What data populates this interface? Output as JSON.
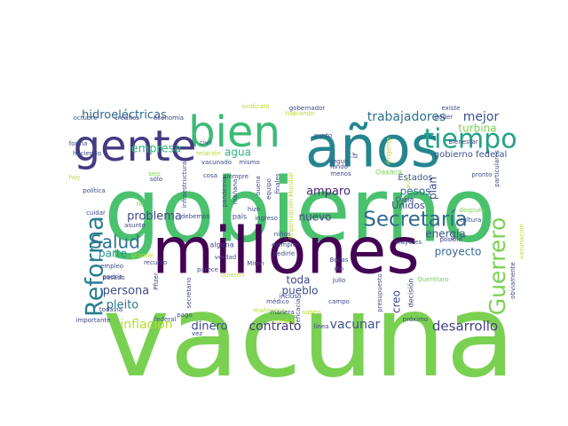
{
  "chart_data": {
    "type": "wordcloud",
    "title": "",
    "palette": "viridis",
    "background": "#ffffff",
    "words": [
      {
        "text": "vacuna",
        "weight": 100,
        "color": "#7ad151",
        "rotated": false
      },
      {
        "text": "gobierno",
        "weight": 98,
        "color": "#4ac16d",
        "rotated": false
      },
      {
        "text": "millones",
        "weight": 78,
        "color": "#440154",
        "rotated": false
      },
      {
        "text": "años",
        "weight": 56,
        "color": "#25858e",
        "rotated": false
      },
      {
        "text": "bien",
        "weight": 44,
        "color": "#3bbb75",
        "rotated": false
      },
      {
        "text": "gente",
        "weight": 40,
        "color": "#443a83",
        "rotated": false
      },
      {
        "text": "tiempo",
        "weight": 26,
        "color": "#20a386",
        "rotated": false
      },
      {
        "text": "Reforma",
        "weight": 26,
        "color": "#287d8e",
        "rotated": true
      },
      {
        "text": "Guerrero",
        "weight": 22,
        "color": "#7ad151",
        "rotated": true
      },
      {
        "text": "Secretaría",
        "weight": 21,
        "color": "#306a8e",
        "rotated": false
      },
      {
        "text": "Salud",
        "weight": 18,
        "color": "#2c728e",
        "rotated": false
      },
      {
        "text": "vacunar",
        "weight": 12,
        "color": "#3b528b",
        "rotated": false
      },
      {
        "text": "trabajadores",
        "weight": 12,
        "color": "#2c728e",
        "rotated": false
      },
      {
        "text": "mejor",
        "weight": 11,
        "color": "#3b528b",
        "rotated": false
      },
      {
        "text": "desarrollo",
        "weight": 12,
        "color": "#433e85",
        "rotated": false
      },
      {
        "text": "inflación",
        "weight": 12,
        "color": "#b5de2b",
        "rotated": false
      },
      {
        "text": "contrato",
        "weight": 11,
        "color": "#453581",
        "rotated": false
      },
      {
        "text": "hidroeléctricas",
        "weight": 11,
        "color": "#31688e",
        "rotated": false
      },
      {
        "text": "empresa",
        "weight": 11,
        "color": "#35b779",
        "rotated": false
      },
      {
        "text": "problema",
        "weight": 10,
        "color": "#3e4989",
        "rotated": false
      },
      {
        "text": "persona",
        "weight": 10,
        "color": "#3e4989",
        "rotated": false
      },
      {
        "text": "pleito",
        "weight": 10,
        "color": "#2a788e",
        "rotated": false
      },
      {
        "text": "parte",
        "weight": 10,
        "color": "#21918c",
        "rotated": false
      },
      {
        "text": "dinero",
        "weight": 10,
        "color": "#3e4989",
        "rotated": false
      },
      {
        "text": "amparo",
        "weight": 10,
        "color": "#482173",
        "rotated": false
      },
      {
        "text": "pesos",
        "weight": 10,
        "color": "#2c728e",
        "rotated": false
      },
      {
        "text": "turbina",
        "weight": 10,
        "color": "#7ad151",
        "rotated": false
      },
      {
        "text": "agua",
        "weight": 10,
        "color": "#2db27d",
        "rotated": false
      },
      {
        "text": "nuevo",
        "weight": 9,
        "color": "#414487",
        "rotated": false
      },
      {
        "text": "energía",
        "weight": 9,
        "color": "#3b528b",
        "rotated": false
      },
      {
        "text": "proyecto",
        "weight": 9,
        "color": "#31688e",
        "rotated": false
      },
      {
        "text": "toda",
        "weight": 9,
        "color": "#3e4989",
        "rotated": false
      },
      {
        "text": "pueblo",
        "weight": 9,
        "color": "#3e4989",
        "rotated": false
      },
      {
        "text": "Unidos",
        "weight": 9,
        "color": "#3e4989",
        "rotated": false
      },
      {
        "text": "plan",
        "weight": 9,
        "color": "#3e4989",
        "rotated": true
      },
      {
        "text": "creo",
        "weight": 9,
        "color": "#3e4989",
        "rotated": true
      },
      {
        "text": "gobierno federal",
        "weight": 8,
        "color": "#3b528b",
        "rotated": false
      },
      {
        "text": "Estados",
        "weight": 8,
        "color": "#3b528b",
        "rotated": false
      },
      {
        "text": "ir",
        "weight": 8,
        "color": "#3e4989",
        "rotated": true
      },
      {
        "text": "decisión",
        "weight": 7,
        "color": "#3e4989",
        "rotated": true
      },
      {
        "text": "octubre",
        "weight": 6,
        "color": "#3b528b",
        "rotated": false
      },
      {
        "text": "créditos",
        "weight": 6,
        "color": "#3e4989",
        "rotated": false
      },
      {
        "text": "economía",
        "weight": 6,
        "color": "#3e4989",
        "rotated": false
      },
      {
        "text": "sindicato",
        "weight": 6,
        "color": "#b5de2b",
        "rotated": false
      },
      {
        "text": "gobernador",
        "weight": 6,
        "color": "#3e4989",
        "rotated": false
      },
      {
        "text": "existe",
        "weight": 6,
        "color": "#3e4989",
        "rotated": false
      },
      {
        "text": "poder",
        "weight": 6,
        "color": "#3e4989",
        "rotated": false
      },
      {
        "text": "Bienestar",
        "weight": 6,
        "color": "#3e4989",
        "rotated": false
      },
      {
        "text": "forma",
        "weight": 6,
        "color": "#3e4989",
        "rotated": false
      },
      {
        "text": "haciendo",
        "weight": 6,
        "color": "#3e4989",
        "rotated": false
      },
      {
        "text": "vacunado",
        "weight": 6,
        "color": "#3e4989",
        "rotated": false
      },
      {
        "text": "mismo",
        "weight": 6,
        "color": "#3e4989",
        "rotated": false
      },
      {
        "text": "punto",
        "weight": 6,
        "color": "#3e4989",
        "rotated": false
      },
      {
        "text": "pronto",
        "weight": 6,
        "color": "#3e4989",
        "rotated": false
      },
      {
        "text": "política",
        "weight": 6,
        "color": "#3e4989",
        "rotated": false
      },
      {
        "text": "cosa",
        "weight": 6,
        "color": "#3e4989",
        "rotated": false
      },
      {
        "text": "Ojalá",
        "weight": 7,
        "color": "#3e4989",
        "rotated": false
      },
      {
        "text": "Oaxaca",
        "weight": 6,
        "color": "#7ad151",
        "rotated": false
      },
      {
        "text": "país",
        "weight": 7,
        "color": "#3e4989",
        "rotated": false
      },
      {
        "text": "alguna",
        "weight": 7,
        "color": "#3e4989",
        "rotated": false
      },
      {
        "text": "niños",
        "weight": 6,
        "color": "#3e4989",
        "rotated": false
      },
      {
        "text": "mayores",
        "weight": 6,
        "color": "#3e4989",
        "rotated": false
      },
      {
        "text": "posible",
        "weight": 6,
        "color": "#3e4989",
        "rotated": false
      },
      {
        "text": "cultura",
        "weight": 6,
        "color": "#3e4989",
        "rotated": false
      },
      {
        "text": "después",
        "weight": 6,
        "color": "#7ad151",
        "rotated": false
      },
      {
        "text": "asunto",
        "weight": 6,
        "color": "#3e4989",
        "rotated": false
      },
      {
        "text": "empleo",
        "weight": 6,
        "color": "#3e4989",
        "rotated": false
      },
      {
        "text": "podría",
        "weight": 6,
        "color": "#3e4989",
        "rotated": false
      },
      {
        "text": "pasado",
        "weight": 6,
        "color": "#3e4989",
        "rotated": false
      },
      {
        "text": "todavía",
        "weight": 6,
        "color": "#3e4989",
        "rotated": false
      },
      {
        "text": "importante",
        "weight": 5,
        "color": "#3e4989",
        "rotated": false
      },
      {
        "text": "parece",
        "weight": 6,
        "color": "#3e4989",
        "rotated": false
      },
      {
        "text": "Miren",
        "weight": 6,
        "color": "#3e4989",
        "rotated": false
      },
      {
        "text": "incluso",
        "weight": 6,
        "color": "#3e4989",
        "rotated": false
      },
      {
        "text": "presupuesto",
        "weight": 5,
        "color": "#3e4989",
        "rotated": true
      },
      {
        "text": "Querétaro",
        "weight": 6,
        "color": "#7ad151",
        "rotated": false
      },
      {
        "text": "próximo",
        "weight": 6,
        "color": "#3e4989",
        "rotated": false
      },
      {
        "text": "julio",
        "weight": 6,
        "color": "#3e4989",
        "rotated": false
      },
      {
        "text": "dio",
        "weight": 6,
        "color": "#3e4989",
        "rotated": false
      },
      {
        "text": "Bocas",
        "weight": 6,
        "color": "#3e4989",
        "rotated": false
      },
      {
        "text": "secretario",
        "weight": 6,
        "color": "#3e4989",
        "rotated": true
      },
      {
        "text": "médico",
        "weight": 6,
        "color": "#3e4989",
        "rotated": false
      },
      {
        "text": "pandemia",
        "weight": 6,
        "color": "#3e4989",
        "rotated": true
      },
      {
        "text": "siempre",
        "weight": 6,
        "color": "#3e4989",
        "rotated": false
      },
      {
        "text": "verdad",
        "weight": 6,
        "color": "#3e4989",
        "rotated": false
      },
      {
        "text": "pedirle",
        "weight": 6,
        "color": "#3e4989",
        "rotated": false
      },
      {
        "text": "ejemplo",
        "weight": 6,
        "color": "#3e4989",
        "rotated": false
      },
      {
        "text": "Organización Mundial",
        "weight": 6,
        "color": "#b5de2b",
        "rotated": true
      },
      {
        "text": "civil",
        "weight": 6,
        "color": "#3e4989",
        "rotated": false
      },
      {
        "text": "debemos",
        "weight": 6,
        "color": "#3e4989",
        "rotated": false
      },
      {
        "text": "cuidar",
        "weight": 6,
        "color": "#3e4989",
        "rotated": false
      },
      {
        "text": "infraestructura",
        "weight": 5,
        "color": "#3e4989",
        "rotated": true
      },
      {
        "text": "hizo",
        "weight": 5,
        "color": "#3e4989",
        "rotated": false
      },
      {
        "text": "ingreso",
        "weight": 5,
        "color": "#3e4989",
        "rotated": false
      },
      {
        "text": "recurso",
        "weight": 5,
        "color": "#3e4989",
        "rotated": false
      },
      {
        "text": "Pfizer",
        "weight": 5,
        "color": "#3e4989",
        "rotated": true
      },
      {
        "text": "federal",
        "weight": 5,
        "color": "#3e4989",
        "rotated": false
      },
      {
        "text": "grande",
        "weight": 5,
        "color": "#b5de2b",
        "rotated": false
      },
      {
        "text": "pago",
        "weight": 5,
        "color": "#3e4989",
        "rotated": false
      },
      {
        "text": "vez",
        "weight": 5,
        "color": "#3e4989",
        "rotated": false
      },
      {
        "text": "eficacia",
        "weight": 5,
        "color": "#3e4989",
        "rotated": true
      },
      {
        "text": "manera",
        "weight": 5,
        "color": "#3e4989",
        "rotated": false
      },
      {
        "text": "línea",
        "weight": 5,
        "color": "#3e4989",
        "rotated": false
      },
      {
        "text": "campo",
        "weight": 5,
        "color": "#3e4989",
        "rotated": false
      },
      {
        "text": "menos",
        "weight": 5,
        "color": "#3e4989",
        "rotated": false
      },
      {
        "text": "seguir",
        "weight": 5,
        "color": "#3e4989",
        "rotated": false
      },
      {
        "text": "fondo",
        "weight": 5,
        "color": "#3e4989",
        "rotated": false
      },
      {
        "text": "obviamente",
        "weight": 5,
        "color": "#3e4989",
        "rotated": true
      },
      {
        "text": "particulares",
        "weight": 5,
        "color": "#3e4989",
        "rotated": true
      },
      {
        "text": "sólo",
        "weight": 5,
        "color": "#3e4989",
        "rotated": false
      },
      {
        "text": "seis",
        "weight": 5,
        "color": "#7ad151",
        "rotated": false
      },
      {
        "text": "río",
        "weight": 5,
        "color": "#7ad151",
        "rotated": false
      },
      {
        "text": "hoy",
        "weight": 5,
        "color": "#b5de2b",
        "rotated": false
      },
      {
        "text": "mañana",
        "weight": 5,
        "color": "#3e4989",
        "rotated": true
      },
      {
        "text": "buena",
        "weight": 5,
        "color": "#3e4989",
        "rotated": true
      },
      {
        "text": "equipo",
        "weight": 5,
        "color": "#3e4989",
        "rotated": true
      },
      {
        "text": "finales",
        "weight": 5,
        "color": "#3e4989",
        "rotated": true
      },
      {
        "text": "dirigente",
        "weight": 5,
        "color": "#b5de2b",
        "rotated": true
      },
      {
        "text": "hablando",
        "weight": 5,
        "color": "#b5de2b",
        "rotated": false
      },
      {
        "text": "relación",
        "weight": 5,
        "color": "#b5de2b",
        "rotated": false
      },
      {
        "text": "pueden",
        "weight": 5,
        "color": "#b5de2b",
        "rotated": false
      },
      {
        "text": "saben",
        "weight": 5,
        "color": "#b5de2b",
        "rotated": false
      },
      {
        "text": "quieren",
        "weight": 5,
        "color": "#b5de2b",
        "rotated": false
      },
      {
        "text": "mañanera",
        "weight": 5,
        "color": "#b5de2b",
        "rotated": false
      },
      {
        "text": "vacunación",
        "weight": 5,
        "color": "#b5de2b",
        "rotated": true
      },
      {
        "text": "aún",
        "weight": 5,
        "color": "#b5de2b",
        "rotated": true
      }
    ]
  }
}
